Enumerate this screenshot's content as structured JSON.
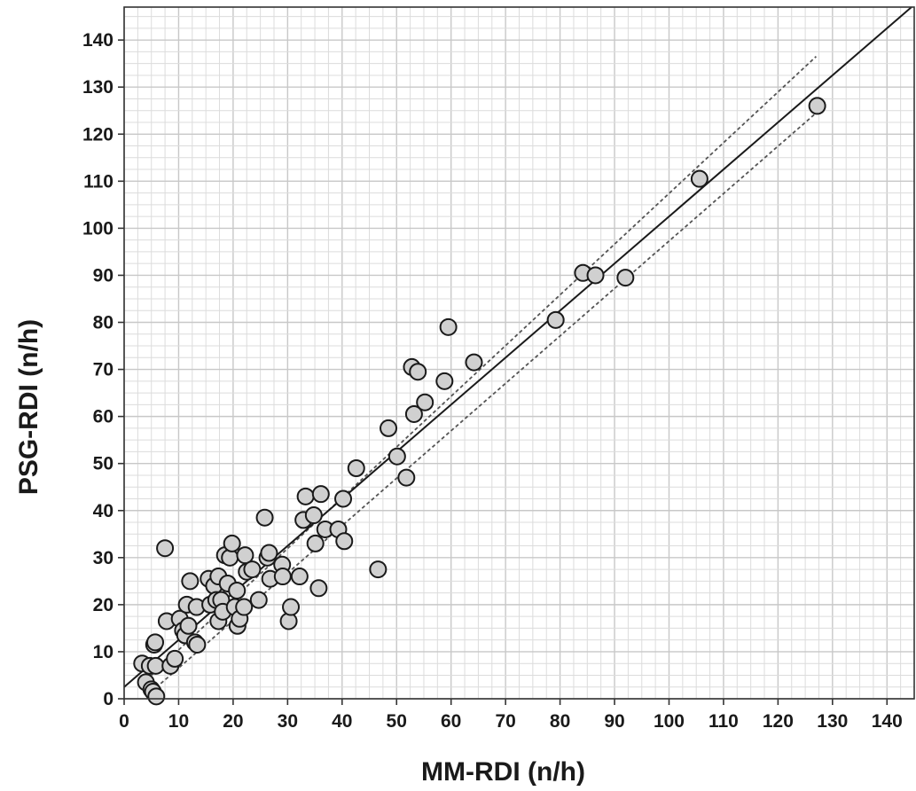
{
  "chart_data": {
    "type": "scatter",
    "xlabel": "MM-RDI (n/h)",
    "ylabel": "PSG-RDI (n/h)",
    "xlim": [
      0,
      145
    ],
    "ylim": [
      0,
      147
    ],
    "x_ticks": [
      0,
      10,
      20,
      30,
      40,
      50,
      60,
      70,
      80,
      90,
      100,
      110,
      120,
      130,
      140
    ],
    "y_ticks": [
      0,
      10,
      20,
      30,
      40,
      50,
      60,
      70,
      80,
      90,
      100,
      110,
      120,
      130,
      140
    ],
    "grid": "on",
    "marker": {
      "shape": "circle",
      "fill": "#d0d0d0",
      "edge": "#1a1a1a"
    },
    "colors": {
      "grid": "#c8c8c8",
      "line": "#1a1a1a",
      "ci": "#555555"
    },
    "regression_line": {
      "style": "solid",
      "intercept": 2.5,
      "slope": 1.0
    },
    "confidence_band": {
      "style": "dotted",
      "upper": [
        [
          5,
          5.0
        ],
        [
          127,
          136.5
        ]
      ],
      "lower": [
        [
          5,
          1.5
        ],
        [
          127,
          124.5
        ]
      ]
    },
    "points": [
      [
        3.3,
        7.5
      ],
      [
        4.0,
        3.5
      ],
      [
        4.7,
        7.0
      ],
      [
        5.0,
        2.0
      ],
      [
        5.3,
        1.5
      ],
      [
        5.5,
        11.5
      ],
      [
        5.7,
        12.0
      ],
      [
        5.8,
        7.0
      ],
      [
        5.9,
        0.5
      ],
      [
        7.5,
        32.0
      ],
      [
        7.8,
        16.5
      ],
      [
        8.5,
        7.0
      ],
      [
        9.3,
        8.5
      ],
      [
        10.2,
        17.0
      ],
      [
        10.8,
        14.5
      ],
      [
        11.2,
        13.5
      ],
      [
        11.5,
        20.0
      ],
      [
        11.8,
        15.5
      ],
      [
        12.1,
        25.0
      ],
      [
        13.0,
        12.0
      ],
      [
        13.4,
        11.5
      ],
      [
        13.3,
        19.5
      ],
      [
        15.5,
        25.5
      ],
      [
        15.8,
        20.0
      ],
      [
        16.5,
        24.0
      ],
      [
        16.9,
        21.0
      ],
      [
        17.3,
        26.0
      ],
      [
        17.3,
        16.5
      ],
      [
        17.8,
        21.0
      ],
      [
        18.1,
        18.5
      ],
      [
        18.5,
        30.5
      ],
      [
        19.0,
        24.5
      ],
      [
        19.4,
        30.0
      ],
      [
        19.8,
        33.0
      ],
      [
        20.3,
        19.5
      ],
      [
        20.7,
        23.0
      ],
      [
        20.8,
        15.5
      ],
      [
        21.2,
        17.0
      ],
      [
        22.0,
        19.5
      ],
      [
        22.2,
        30.5
      ],
      [
        22.5,
        27.0
      ],
      [
        23.5,
        27.5
      ],
      [
        24.7,
        21.0
      ],
      [
        25.8,
        38.5
      ],
      [
        26.3,
        30.0
      ],
      [
        26.6,
        31.0
      ],
      [
        26.8,
        25.5
      ],
      [
        29.0,
        28.5
      ],
      [
        29.1,
        26.0
      ],
      [
        30.2,
        16.5
      ],
      [
        30.6,
        19.5
      ],
      [
        32.2,
        26.0
      ],
      [
        32.9,
        38.0
      ],
      [
        33.3,
        43.0
      ],
      [
        34.8,
        39.0
      ],
      [
        35.1,
        33.0
      ],
      [
        35.7,
        23.5
      ],
      [
        36.1,
        43.5
      ],
      [
        36.9,
        36.0
      ],
      [
        39.3,
        36.0
      ],
      [
        40.2,
        42.5
      ],
      [
        40.4,
        33.5
      ],
      [
        42.6,
        49.0
      ],
      [
        46.6,
        27.5
      ],
      [
        48.5,
        57.5
      ],
      [
        50.1,
        51.5
      ],
      [
        51.8,
        47.0
      ],
      [
        52.8,
        70.5
      ],
      [
        53.2,
        60.5
      ],
      [
        53.9,
        69.5
      ],
      [
        55.2,
        63.0
      ],
      [
        58.8,
        67.5
      ],
      [
        59.5,
        79.0
      ],
      [
        64.2,
        71.5
      ],
      [
        79.2,
        80.5
      ],
      [
        84.2,
        90.5
      ],
      [
        86.5,
        90.0
      ],
      [
        92.0,
        89.5
      ],
      [
        105.6,
        110.5
      ],
      [
        127.2,
        126.0
      ]
    ]
  }
}
